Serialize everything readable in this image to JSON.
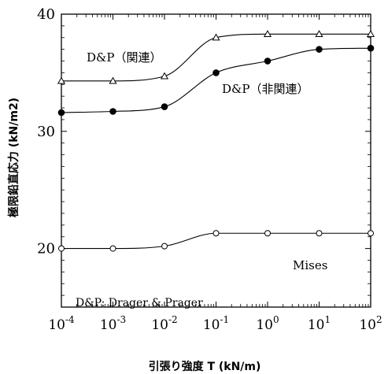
{
  "chart_data": {
    "type": "line",
    "xlabel": "引張り強度 T (kN/m)",
    "ylabel": "極限鉛直応力 (kN/m2)",
    "xscale": "log",
    "xlim": [
      0.0001,
      100
    ],
    "ylim": [
      15,
      40
    ],
    "x_ticks": [
      {
        "value": 0.0001,
        "base": "10",
        "exp": "-4"
      },
      {
        "value": 0.001,
        "base": "10",
        "exp": "-3"
      },
      {
        "value": 0.01,
        "base": "10",
        "exp": "-2"
      },
      {
        "value": 0.1,
        "base": "10",
        "exp": "-1"
      },
      {
        "value": 1,
        "base": "10",
        "exp": "0"
      },
      {
        "value": 10,
        "base": "10",
        "exp": "1"
      },
      {
        "value": 100,
        "base": "10",
        "exp": "2"
      }
    ],
    "y_ticks": [
      {
        "value": 20,
        "label": "20"
      },
      {
        "value": 30,
        "label": "30"
      },
      {
        "value": 40,
        "label": "40"
      }
    ],
    "series": [
      {
        "name": "D&P（関連）",
        "marker": "open-triangle",
        "x": [
          0.0001,
          0.001,
          0.01,
          0.1,
          1,
          10,
          100
        ],
        "values": [
          34.3,
          34.3,
          34.7,
          38.0,
          38.3,
          38.3,
          38.3
        ]
      },
      {
        "name": "D&P（非関連）",
        "marker": "filled-circle",
        "x": [
          0.0001,
          0.001,
          0.01,
          0.1,
          1,
          10,
          100
        ],
        "values": [
          31.6,
          31.7,
          32.1,
          35.0,
          36.0,
          37.0,
          37.1
        ]
      },
      {
        "name": "Mises",
        "marker": "open-circle",
        "x": [
          0.0001,
          0.001,
          0.01,
          0.1,
          1,
          10,
          100
        ],
        "values": [
          20.0,
          20.0,
          20.2,
          21.3,
          21.3,
          21.3,
          21.3
        ]
      }
    ],
    "annotation": "D&P: Drager & Prager",
    "grid": false
  }
}
